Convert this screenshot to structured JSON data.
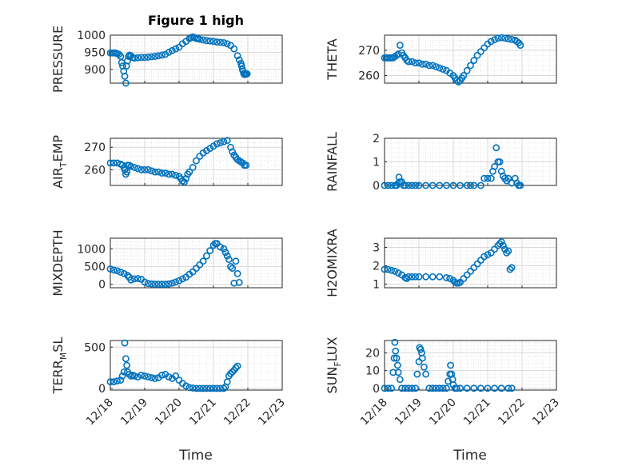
{
  "figure": {
    "title": "Figure 1 high",
    "xlabel_left": "Time",
    "xlabel_right": "Time"
  },
  "colors": {
    "marker": "#0072BD",
    "axis": "#262626",
    "grid": "#d9d9d9"
  },
  "chart_data": [
    {
      "type": "scatter",
      "ylabel": "PRESSURE",
      "ylabel_sub": "",
      "title": "Figure 1 high",
      "ylim": [
        860,
        1000
      ],
      "yticks": [
        900,
        950,
        1000
      ],
      "xlim": [
        0,
        5
      ],
      "xticks": [
        "12/18",
        "12/19",
        "12/20",
        "12/21",
        "12/22",
        "12/23"
      ],
      "show_xticks": false,
      "series": [
        {
          "x": [
            0.0,
            0.05,
            0.1,
            0.15,
            0.2,
            0.25,
            0.3,
            0.33,
            0.36,
            0.39,
            0.42,
            0.45,
            0.47,
            0.5,
            0.53,
            0.56,
            0.6,
            0.65,
            0.7,
            0.8,
            0.9,
            1.0,
            1.1,
            1.2,
            1.3,
            1.4,
            1.5,
            1.6,
            1.7,
            1.8,
            1.9,
            2.0,
            2.1,
            2.2,
            2.3,
            2.35,
            2.4,
            2.45,
            2.5,
            2.55,
            2.6,
            2.7,
            2.8,
            2.9,
            3.0,
            3.1,
            3.2,
            3.3,
            3.4,
            3.5,
            3.6,
            3.7,
            3.75,
            3.8,
            3.82,
            3.84,
            3.86,
            3.88,
            3.9,
            3.92,
            3.95,
            3.98
          ],
          "y": [
            948,
            948,
            948,
            948,
            946,
            944,
            938,
            920,
            910,
            895,
            880,
            860,
            910,
            925,
            938,
            942,
            940,
            935,
            933,
            934,
            935,
            935,
            936,
            937,
            938,
            940,
            942,
            944,
            950,
            955,
            960,
            965,
            975,
            982,
            990,
            993,
            995,
            993,
            990,
            990,
            988,
            986,
            984,
            983,
            982,
            980,
            979,
            978,
            975,
            970,
            960,
            940,
            928,
            918,
            910,
            900,
            895,
            888,
            885,
            885,
            886,
            887
          ]
        }
      ]
    },
    {
      "type": "scatter",
      "ylabel": "THETA",
      "ylabel_sub": "",
      "ylim": [
        257,
        276
      ],
      "yticks": [
        260,
        270
      ],
      "xlim": [
        0,
        5
      ],
      "xticks": [
        "12/18",
        "12/19",
        "12/20",
        "12/21",
        "12/22",
        "12/23"
      ],
      "show_xticks": false,
      "series": [
        {
          "x": [
            0.0,
            0.05,
            0.1,
            0.15,
            0.2,
            0.25,
            0.3,
            0.35,
            0.4,
            0.45,
            0.5,
            0.55,
            0.6,
            0.65,
            0.7,
            0.8,
            0.9,
            1.0,
            1.1,
            1.2,
            1.3,
            1.4,
            1.5,
            1.6,
            1.7,
            1.8,
            1.9,
            2.0,
            2.05,
            2.1,
            2.15,
            2.2,
            2.25,
            2.3,
            2.4,
            2.5,
            2.6,
            2.7,
            2.8,
            2.9,
            3.0,
            3.1,
            3.2,
            3.3,
            3.4,
            3.5,
            3.6,
            3.7,
            3.8,
            3.85,
            3.9,
            3.95
          ],
          "y": [
            267,
            267,
            267,
            267,
            267,
            267,
            267.5,
            268,
            268.5,
            272,
            269,
            268,
            267,
            266,
            265.5,
            265.5,
            265,
            265,
            264.5,
            264.5,
            264,
            264,
            263.5,
            263,
            262.5,
            262,
            261,
            260,
            259,
            258,
            257.5,
            258,
            259,
            260,
            262,
            264,
            266,
            268,
            269.5,
            271,
            272.5,
            273.5,
            274.2,
            274.8,
            275,
            274.8,
            274.5,
            274.3,
            274,
            273.5,
            273,
            272
          ]
        }
      ]
    },
    {
      "type": "scatter",
      "ylabel": "AIR",
      "ylabel_sub": "T",
      "ylabel_rest": "EMP",
      "ylim": [
        253,
        274
      ],
      "yticks": [
        260,
        270
      ],
      "xlim": [
        0,
        5
      ],
      "xticks": [
        "12/18",
        "12/19",
        "12/20",
        "12/21",
        "12/22",
        "12/23"
      ],
      "show_xticks": false,
      "series": [
        {
          "x": [
            0.0,
            0.1,
            0.2,
            0.3,
            0.35,
            0.4,
            0.42,
            0.45,
            0.48,
            0.5,
            0.55,
            0.6,
            0.7,
            0.8,
            0.9,
            1.0,
            1.1,
            1.2,
            1.3,
            1.4,
            1.5,
            1.6,
            1.7,
            1.8,
            1.9,
            2.0,
            2.05,
            2.1,
            2.15,
            2.2,
            2.25,
            2.3,
            2.4,
            2.5,
            2.6,
            2.7,
            2.8,
            2.9,
            3.0,
            3.1,
            3.2,
            3.3,
            3.4,
            3.5,
            3.55,
            3.6,
            3.65,
            3.7,
            3.75,
            3.8,
            3.85,
            3.9,
            3.95
          ],
          "y": [
            263,
            263,
            263,
            262.5,
            262,
            261,
            260,
            258,
            259,
            262,
            262,
            261.5,
            261,
            260.5,
            260,
            260,
            260,
            259.5,
            259,
            259,
            258.5,
            258.5,
            258,
            258,
            257.5,
            257,
            256,
            255,
            254.5,
            256,
            258,
            259,
            261,
            264,
            266,
            267.5,
            268.5,
            269.5,
            270.5,
            271.5,
            272,
            272.5,
            273,
            270,
            268,
            266.5,
            265.5,
            264.5,
            264,
            263.5,
            263,
            262,
            262
          ]
        }
      ]
    },
    {
      "type": "scatter",
      "ylabel": "RAINFALL",
      "ylabel_sub": "",
      "ylim": [
        0,
        2
      ],
      "yticks": [
        0,
        1,
        2
      ],
      "xlim": [
        0,
        5
      ],
      "xticks": [
        "12/18",
        "12/19",
        "12/20",
        "12/21",
        "12/22",
        "12/23"
      ],
      "show_xticks": false,
      "series": [
        {
          "x": [
            0.0,
            0.1,
            0.2,
            0.3,
            0.35,
            0.4,
            0.42,
            0.45,
            0.5,
            0.55,
            0.6,
            0.7,
            0.8,
            0.9,
            1.0,
            1.2,
            1.4,
            1.6,
            1.8,
            2.0,
            2.2,
            2.4,
            2.5,
            2.6,
            2.8,
            2.9,
            3.0,
            3.1,
            3.15,
            3.2,
            3.25,
            3.3,
            3.35,
            3.4,
            3.45,
            3.5,
            3.55,
            3.6,
            3.7,
            3.8,
            3.85,
            3.9,
            3.95
          ],
          "y": [
            0,
            0,
            0,
            0,
            0,
            0.1,
            0.35,
            0.15,
            0.15,
            0,
            0,
            0,
            0,
            0,
            0,
            0,
            0,
            0,
            0,
            0,
            0,
            0,
            0,
            0,
            0,
            0.3,
            0.3,
            0.3,
            0.6,
            0.8,
            1.6,
            1.0,
            1.0,
            0.6,
            0.4,
            0.3,
            0.2,
            0.3,
            0.1,
            0.3,
            0.1,
            0,
            0
          ]
        }
      ]
    },
    {
      "type": "scatter",
      "ylabel": "MIXDEPTH",
      "ylabel_sub": "",
      "ylim": [
        -100,
        1300
      ],
      "yticks": [
        0,
        500,
        1000
      ],
      "xlim": [
        0,
        5
      ],
      "xticks": [
        "12/18",
        "12/19",
        "12/20",
        "12/21",
        "12/22",
        "12/23"
      ],
      "show_xticks": false,
      "series": [
        {
          "x": [
            0.0,
            0.1,
            0.2,
            0.3,
            0.4,
            0.5,
            0.55,
            0.6,
            0.7,
            0.8,
            0.9,
            1.0,
            1.1,
            1.2,
            1.3,
            1.4,
            1.5,
            1.6,
            1.7,
            1.8,
            1.9,
            2.0,
            2.1,
            2.2,
            2.3,
            2.4,
            2.5,
            2.6,
            2.7,
            2.8,
            2.9,
            3.0,
            3.05,
            3.1,
            3.2,
            3.3,
            3.35,
            3.4,
            3.45,
            3.5,
            3.55,
            3.6,
            3.65,
            3.7,
            3.75
          ],
          "y": [
            430,
            400,
            380,
            340,
            300,
            250,
            200,
            120,
            150,
            160,
            140,
            60,
            20,
            10,
            0,
            0,
            0,
            0,
            10,
            30,
            60,
            100,
            150,
            200,
            280,
            350,
            450,
            550,
            650,
            800,
            950,
            1100,
            1150,
            1150,
            1050,
            1000,
            900,
            800,
            700,
            500,
            450,
            30,
            650,
            300,
            50
          ]
        }
      ]
    },
    {
      "type": "scatter",
      "ylabel": "H2OMIXRA",
      "ylabel_sub": "",
      "ylim": [
        0.8,
        3.5
      ],
      "yticks": [
        1,
        2,
        3
      ],
      "xlim": [
        0,
        5
      ],
      "xticks": [
        "12/18",
        "12/19",
        "12/20",
        "12/21",
        "12/22",
        "12/23"
      ],
      "show_xticks": false,
      "series": [
        {
          "x": [
            0.0,
            0.1,
            0.2,
            0.3,
            0.4,
            0.5,
            0.6,
            0.65,
            0.7,
            0.8,
            0.9,
            1.0,
            1.2,
            1.4,
            1.6,
            1.8,
            1.9,
            2.0,
            2.05,
            2.1,
            2.15,
            2.2,
            2.3,
            2.4,
            2.5,
            2.6,
            2.7,
            2.8,
            2.9,
            3.0,
            3.1,
            3.2,
            3.3,
            3.35,
            3.4,
            3.45,
            3.5,
            3.55,
            3.6,
            3.65,
            3.7
          ],
          "y": [
            1.8,
            1.8,
            1.75,
            1.7,
            1.6,
            1.5,
            1.35,
            1.3,
            1.4,
            1.4,
            1.4,
            1.4,
            1.4,
            1.4,
            1.4,
            1.35,
            1.3,
            1.2,
            1.1,
            1.05,
            1.05,
            1.1,
            1.3,
            1.5,
            1.7,
            1.9,
            2.1,
            2.3,
            2.5,
            2.6,
            2.7,
            2.9,
            3.1,
            3.2,
            3.3,
            3.1,
            2.9,
            2.7,
            2.8,
            1.8,
            1.9
          ]
        }
      ]
    },
    {
      "type": "scatter",
      "ylabel": "TERR",
      "ylabel_sub": "M",
      "ylabel_rest": "SL",
      "ylim": [
        -20,
        580
      ],
      "yticks": [
        0,
        500
      ],
      "xlim": [
        0,
        5
      ],
      "xticks": [
        "12/18",
        "12/19",
        "12/20",
        "12/21",
        "12/22",
        "12/23"
      ],
      "show_xticks": true,
      "series": [
        {
          "x": [
            0.0,
            0.1,
            0.2,
            0.3,
            0.35,
            0.4,
            0.42,
            0.45,
            0.48,
            0.5,
            0.55,
            0.6,
            0.65,
            0.7,
            0.8,
            0.9,
            1.0,
            1.1,
            1.2,
            1.3,
            1.4,
            1.5,
            1.6,
            1.7,
            1.8,
            1.9,
            2.0,
            2.1,
            2.2,
            2.3,
            2.4,
            2.5,
            2.6,
            2.7,
            2.8,
            2.9,
            3.0,
            3.1,
            3.2,
            3.3,
            3.35,
            3.4,
            3.45,
            3.5,
            3.55,
            3.6,
            3.65,
            3.7
          ],
          "y": [
            80,
            80,
            90,
            100,
            150,
            200,
            550,
            360,
            280,
            200,
            170,
            150,
            160,
            150,
            140,
            160,
            150,
            140,
            130,
            120,
            130,
            160,
            170,
            140,
            120,
            150,
            100,
            60,
            30,
            10,
            5,
            0,
            0,
            0,
            0,
            0,
            0,
            0,
            0,
            0,
            20,
            80,
            150,
            180,
            200,
            220,
            250,
            270
          ]
        }
      ]
    },
    {
      "type": "scatter",
      "ylabel": "SUN",
      "ylabel_sub": "F",
      "ylabel_rest": "LUX",
      "ylim": [
        -1,
        27
      ],
      "yticks": [
        0,
        10,
        20
      ],
      "xlim": [
        0,
        5
      ],
      "xticks": [
        "12/18",
        "12/19",
        "12/20",
        "12/21",
        "12/22",
        "12/23"
      ],
      "show_xticks": true,
      "series": [
        {
          "x": [
            0.0,
            0.1,
            0.2,
            0.25,
            0.28,
            0.3,
            0.32,
            0.35,
            0.38,
            0.4,
            0.45,
            0.5,
            0.6,
            0.7,
            0.8,
            0.9,
            0.95,
            1.0,
            1.02,
            1.05,
            1.08,
            1.1,
            1.15,
            1.2,
            1.3,
            1.4,
            1.5,
            1.6,
            1.7,
            1.8,
            1.85,
            1.9,
            1.92,
            1.95,
            1.98,
            2.0,
            2.05,
            2.1,
            2.2,
            2.4,
            2.6,
            2.8,
            3.0,
            3.2,
            3.4,
            3.6,
            3.7
          ],
          "y": [
            0,
            0,
            0,
            9,
            17,
            26,
            21,
            17,
            13,
            9,
            5,
            0,
            0,
            0,
            0,
            0,
            8,
            15,
            23,
            22,
            20,
            17,
            12,
            8,
            0,
            0,
            0,
            0,
            0,
            0,
            4,
            8,
            13,
            8,
            5,
            2,
            0,
            0,
            0,
            0,
            0,
            0,
            0,
            0,
            0,
            0,
            0
          ]
        }
      ]
    }
  ]
}
